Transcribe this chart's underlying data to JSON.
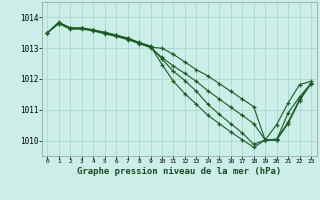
{
  "title": "Graphe pression niveau de la mer (hPa)",
  "background_color": "#cceee8",
  "grid_color": "#aad8d3",
  "line_color": "#1a5c22",
  "ylim": [
    1009.5,
    1014.5
  ],
  "xlim": [
    -0.5,
    23.5
  ],
  "yticks": [
    1010,
    1011,
    1012,
    1013,
    1014
  ],
  "xticks": [
    0,
    1,
    2,
    3,
    4,
    5,
    6,
    7,
    8,
    9,
    10,
    11,
    12,
    13,
    14,
    15,
    16,
    17,
    18,
    19,
    20,
    21,
    22,
    23
  ],
  "series": [
    [
      1013.5,
      1013.85,
      1013.65,
      1013.65,
      1013.58,
      1013.5,
      1013.42,
      1013.32,
      1013.18,
      1013.05,
      1012.65,
      1012.25,
      1011.95,
      1011.6,
      1011.18,
      1010.85,
      1010.55,
      1010.25,
      1009.88,
      1010.02,
      1010.52,
      1011.22,
      1011.82,
      1011.92
    ],
    [
      1013.5,
      1013.8,
      1013.62,
      1013.62,
      1013.56,
      1013.47,
      1013.38,
      1013.28,
      1013.15,
      1013.02,
      1012.7,
      1012.42,
      1012.18,
      1011.92,
      1011.62,
      1011.35,
      1011.08,
      1010.82,
      1010.55,
      1010.02,
      1010.05,
      1010.6,
      1011.35,
      1011.85
    ],
    [
      1013.5,
      1013.83,
      1013.66,
      1013.66,
      1013.6,
      1013.52,
      1013.43,
      1013.33,
      1013.19,
      1013.07,
      1012.47,
      1011.92,
      1011.52,
      1011.18,
      1010.82,
      1010.55,
      1010.28,
      1010.03,
      1009.78,
      1010.02,
      1010.02,
      1010.9,
      1011.42,
      1011.86
    ],
    [
      1013.5,
      1013.8,
      1013.64,
      1013.64,
      1013.58,
      1013.49,
      1013.4,
      1013.3,
      1013.16,
      1013.03,
      1013.0,
      1012.8,
      1012.55,
      1012.3,
      1012.1,
      1011.85,
      1011.6,
      1011.35,
      1011.1,
      1010.02,
      1010.02,
      1010.55,
      1011.3,
      1011.85
    ]
  ],
  "ylabel_fontsize": 5,
  "xlabel_fontsize": 5,
  "title_fontsize": 6.5
}
